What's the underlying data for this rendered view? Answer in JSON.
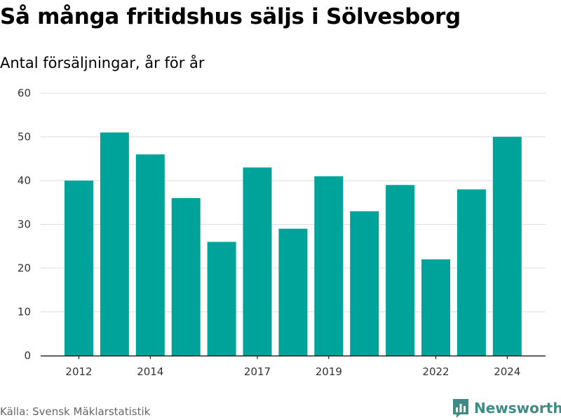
{
  "title": "Så många fritidshus säljs i Sölvesborg",
  "subtitle": "Antal försäljningar, år för år",
  "source": "Källa: Svensk Mäklarstatistik",
  "brand": {
    "name": "Newsworthy",
    "icon": "bar-chart-logo-icon",
    "color": "#3f8a84"
  },
  "colors": {
    "bar": "#00a39a",
    "grid": "#dddddd",
    "axis": "#000000"
  },
  "chart_data": {
    "type": "bar",
    "x": [
      2012,
      2013,
      2014,
      2015,
      2016,
      2017,
      2018,
      2019,
      2020,
      2021,
      2022,
      2023,
      2024
    ],
    "values": [
      40,
      51,
      46,
      36,
      26,
      43,
      29,
      41,
      33,
      39,
      22,
      38,
      50
    ],
    "x_tick_labels": [
      "2012",
      "2014",
      "2017",
      "2019",
      "2022",
      "2024"
    ],
    "y_ticks": [
      0,
      10,
      20,
      30,
      40,
      50,
      60
    ],
    "ylim": [
      0,
      60
    ],
    "grid": true,
    "legend": "none"
  }
}
